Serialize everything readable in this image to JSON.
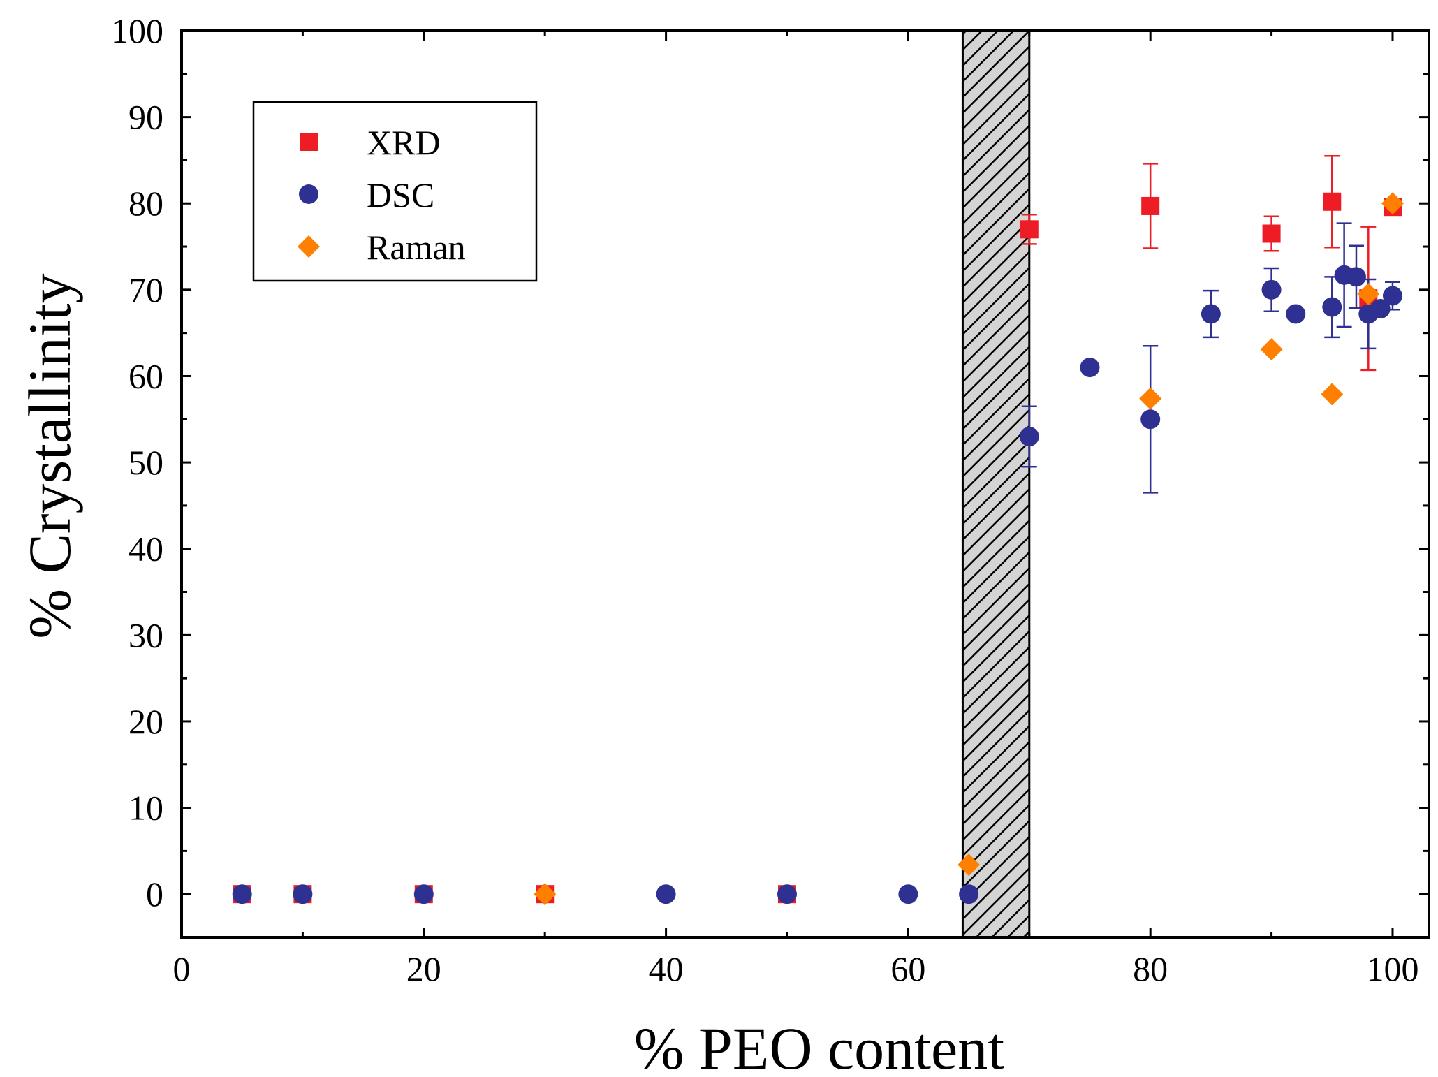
{
  "chart_data": {
    "type": "scatter",
    "title": "",
    "xlabel": "% PEO content",
    "ylabel": "% Crystallinity",
    "xlim": [
      0,
      103
    ],
    "ylim": [
      -5,
      100
    ],
    "x_ticks": [
      0,
      20,
      40,
      60,
      80,
      100
    ],
    "y_ticks": [
      0,
      10,
      20,
      30,
      40,
      50,
      60,
      70,
      80,
      90,
      100
    ],
    "grid": false,
    "legend_position": "top-left",
    "shaded_region": {
      "x_range": [
        64.5,
        70
      ],
      "pattern": "diagonal-hatch"
    },
    "series": [
      {
        "name": "XRD",
        "marker": "square",
        "color": "#ee1c25",
        "points": [
          {
            "x": 5,
            "y": 0
          },
          {
            "x": 10,
            "y": 0
          },
          {
            "x": 20,
            "y": 0
          },
          {
            "x": 30,
            "y": 0
          },
          {
            "x": 50,
            "y": 0
          },
          {
            "x": 70,
            "y": 77,
            "err": 1.7
          },
          {
            "x": 80,
            "y": 79.7,
            "err": 4.9
          },
          {
            "x": 90,
            "y": 76.5,
            "err": 2
          },
          {
            "x": 95,
            "y": 80.2,
            "err": 5.3
          },
          {
            "x": 98,
            "y": 69,
            "err": 8.3
          },
          {
            "x": 100,
            "y": 79.6
          }
        ]
      },
      {
        "name": "DSC",
        "marker": "circle",
        "color": "#2e3192",
        "points": [
          {
            "x": 5,
            "y": 0
          },
          {
            "x": 10,
            "y": 0
          },
          {
            "x": 20,
            "y": 0
          },
          {
            "x": 40,
            "y": 0
          },
          {
            "x": 50,
            "y": 0
          },
          {
            "x": 60,
            "y": 0
          },
          {
            "x": 65,
            "y": 0
          },
          {
            "x": 70,
            "y": 53,
            "err": 3.5
          },
          {
            "x": 75,
            "y": 61
          },
          {
            "x": 80,
            "y": 55,
            "err": 8.5
          },
          {
            "x": 85,
            "y": 67.2,
            "err": 2.7
          },
          {
            "x": 90,
            "y": 70,
            "err": 2.5
          },
          {
            "x": 92,
            "y": 67.2
          },
          {
            "x": 95,
            "y": 68,
            "err": 3.5
          },
          {
            "x": 96,
            "y": 71.7,
            "err": 6
          },
          {
            "x": 97,
            "y": 71.5,
            "err": 3.6
          },
          {
            "x": 98,
            "y": 67.2,
            "err": 4
          },
          {
            "x": 99,
            "y": 67.8
          },
          {
            "x": 100,
            "y": 69.3,
            "err": 1.6
          }
        ]
      },
      {
        "name": "Raman",
        "marker": "diamond",
        "color": "#ff7f00",
        "points": [
          {
            "x": 30,
            "y": 0
          },
          {
            "x": 65,
            "y": 3.4
          },
          {
            "x": 80,
            "y": 57.4
          },
          {
            "x": 90,
            "y": 63.1
          },
          {
            "x": 95,
            "y": 57.9
          },
          {
            "x": 98,
            "y": 69.5
          },
          {
            "x": 100,
            "y": 80
          }
        ]
      }
    ]
  }
}
